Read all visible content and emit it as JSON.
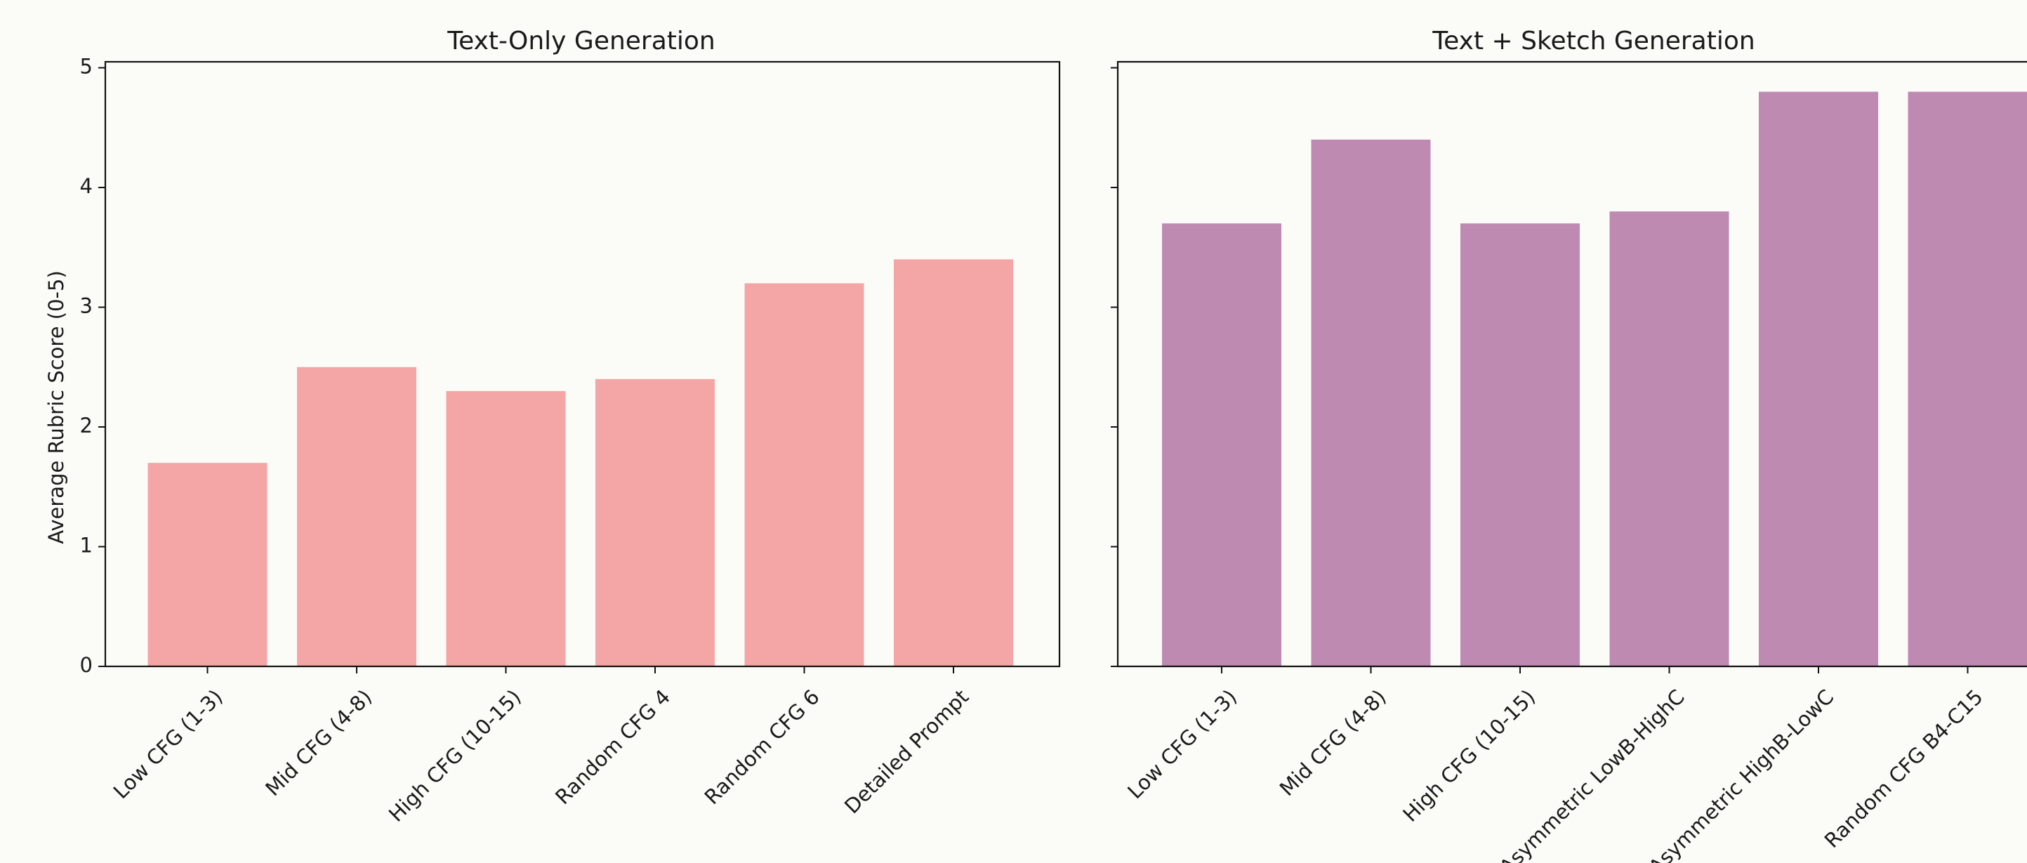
{
  "chart_data": [
    {
      "type": "bar",
      "title": "Text-Only Generation",
      "xlabel": "",
      "ylabel": "Average Rubric Score (0-5)",
      "ylim": [
        0,
        5.05
      ],
      "yticks": [
        0,
        1,
        2,
        3,
        4,
        5
      ],
      "categories": [
        "Low CFG (1-3)",
        "Mid CFG (4-8)",
        "High CFG (10-15)",
        "Random CFG 4",
        "Random CFG 6",
        "Detailed Prompt"
      ],
      "values": [
        1.7,
        2.5,
        2.3,
        2.4,
        3.2,
        3.4
      ],
      "color": "#f4a6a6",
      "grid": false
    },
    {
      "type": "bar",
      "title": "Text + Sketch Generation",
      "xlabel": "",
      "ylabel": "",
      "ylim": [
        0,
        5.05
      ],
      "yticks": [
        0,
        1,
        2,
        3,
        4,
        5
      ],
      "categories": [
        "Low CFG (1-3)",
        "Mid CFG (4-8)",
        "High CFG (10-15)",
        "Asymmetric LowB-HighC",
        "Asymmetric HighB-LowC",
        "Random CFG B4-C15"
      ],
      "values": [
        3.7,
        4.4,
        3.7,
        3.8,
        4.8,
        4.8
      ],
      "color": "#be8ab2",
      "grid": false
    }
  ]
}
